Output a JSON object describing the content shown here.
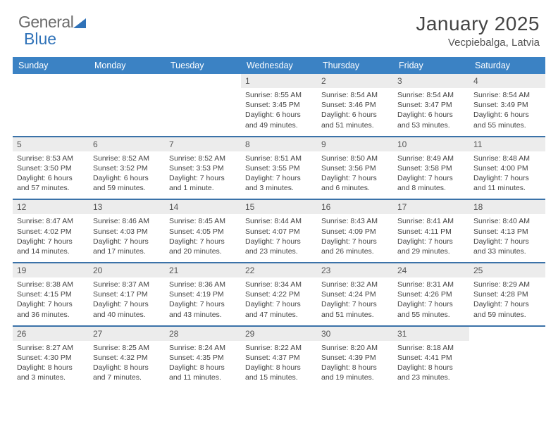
{
  "logo": {
    "text1": "General",
    "text2": "Blue"
  },
  "title": "January 2025",
  "location": "Vecpiebalga, Latvia",
  "colors": {
    "header_bg": "#3b82c4",
    "row_divider": "#3b72a8",
    "daynum_bg": "#ececec",
    "text": "#444444",
    "logo_gray": "#6b6b6b",
    "logo_blue": "#2f72b8"
  },
  "day_names": [
    "Sunday",
    "Monday",
    "Tuesday",
    "Wednesday",
    "Thursday",
    "Friday",
    "Saturday"
  ],
  "weeks": [
    [
      null,
      null,
      null,
      {
        "d": "1",
        "sr": "8:55 AM",
        "ss": "3:45 PM",
        "dl": "6 hours and 49 minutes."
      },
      {
        "d": "2",
        "sr": "8:54 AM",
        "ss": "3:46 PM",
        "dl": "6 hours and 51 minutes."
      },
      {
        "d": "3",
        "sr": "8:54 AM",
        "ss": "3:47 PM",
        "dl": "6 hours and 53 minutes."
      },
      {
        "d": "4",
        "sr": "8:54 AM",
        "ss": "3:49 PM",
        "dl": "6 hours and 55 minutes."
      }
    ],
    [
      {
        "d": "5",
        "sr": "8:53 AM",
        "ss": "3:50 PM",
        "dl": "6 hours and 57 minutes."
      },
      {
        "d": "6",
        "sr": "8:52 AM",
        "ss": "3:52 PM",
        "dl": "6 hours and 59 minutes."
      },
      {
        "d": "7",
        "sr": "8:52 AM",
        "ss": "3:53 PM",
        "dl": "7 hours and 1 minute."
      },
      {
        "d": "8",
        "sr": "8:51 AM",
        "ss": "3:55 PM",
        "dl": "7 hours and 3 minutes."
      },
      {
        "d": "9",
        "sr": "8:50 AM",
        "ss": "3:56 PM",
        "dl": "7 hours and 6 minutes."
      },
      {
        "d": "10",
        "sr": "8:49 AM",
        "ss": "3:58 PM",
        "dl": "7 hours and 8 minutes."
      },
      {
        "d": "11",
        "sr": "8:48 AM",
        "ss": "4:00 PM",
        "dl": "7 hours and 11 minutes."
      }
    ],
    [
      {
        "d": "12",
        "sr": "8:47 AM",
        "ss": "4:02 PM",
        "dl": "7 hours and 14 minutes."
      },
      {
        "d": "13",
        "sr": "8:46 AM",
        "ss": "4:03 PM",
        "dl": "7 hours and 17 minutes."
      },
      {
        "d": "14",
        "sr": "8:45 AM",
        "ss": "4:05 PM",
        "dl": "7 hours and 20 minutes."
      },
      {
        "d": "15",
        "sr": "8:44 AM",
        "ss": "4:07 PM",
        "dl": "7 hours and 23 minutes."
      },
      {
        "d": "16",
        "sr": "8:43 AM",
        "ss": "4:09 PM",
        "dl": "7 hours and 26 minutes."
      },
      {
        "d": "17",
        "sr": "8:41 AM",
        "ss": "4:11 PM",
        "dl": "7 hours and 29 minutes."
      },
      {
        "d": "18",
        "sr": "8:40 AM",
        "ss": "4:13 PM",
        "dl": "7 hours and 33 minutes."
      }
    ],
    [
      {
        "d": "19",
        "sr": "8:38 AM",
        "ss": "4:15 PM",
        "dl": "7 hours and 36 minutes."
      },
      {
        "d": "20",
        "sr": "8:37 AM",
        "ss": "4:17 PM",
        "dl": "7 hours and 40 minutes."
      },
      {
        "d": "21",
        "sr": "8:36 AM",
        "ss": "4:19 PM",
        "dl": "7 hours and 43 minutes."
      },
      {
        "d": "22",
        "sr": "8:34 AM",
        "ss": "4:22 PM",
        "dl": "7 hours and 47 minutes."
      },
      {
        "d": "23",
        "sr": "8:32 AM",
        "ss": "4:24 PM",
        "dl": "7 hours and 51 minutes."
      },
      {
        "d": "24",
        "sr": "8:31 AM",
        "ss": "4:26 PM",
        "dl": "7 hours and 55 minutes."
      },
      {
        "d": "25",
        "sr": "8:29 AM",
        "ss": "4:28 PM",
        "dl": "7 hours and 59 minutes."
      }
    ],
    [
      {
        "d": "26",
        "sr": "8:27 AM",
        "ss": "4:30 PM",
        "dl": "8 hours and 3 minutes."
      },
      {
        "d": "27",
        "sr": "8:25 AM",
        "ss": "4:32 PM",
        "dl": "8 hours and 7 minutes."
      },
      {
        "d": "28",
        "sr": "8:24 AM",
        "ss": "4:35 PM",
        "dl": "8 hours and 11 minutes."
      },
      {
        "d": "29",
        "sr": "8:22 AM",
        "ss": "4:37 PM",
        "dl": "8 hours and 15 minutes."
      },
      {
        "d": "30",
        "sr": "8:20 AM",
        "ss": "4:39 PM",
        "dl": "8 hours and 19 minutes."
      },
      {
        "d": "31",
        "sr": "8:18 AM",
        "ss": "4:41 PM",
        "dl": "8 hours and 23 minutes."
      },
      null
    ]
  ],
  "labels": {
    "sunrise": "Sunrise:",
    "sunset": "Sunset:",
    "daylight": "Daylight:"
  }
}
